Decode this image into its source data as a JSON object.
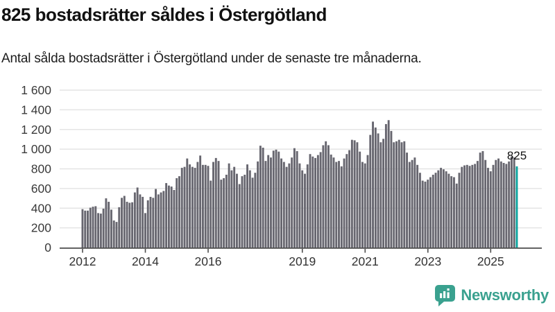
{
  "header": {
    "title": "825 bostadsrätter såldes i Östergötland",
    "subtitle": "Antal sålda bostadsrätter i Östergötland under de senaste tre månaderna."
  },
  "chart_data": {
    "type": "bar",
    "title": "825 bostadsrätter såldes i Östergötland",
    "subtitle": "Antal sålda bostadsrätter i Östergötland under de senaste tre månaderna.",
    "xlabel": "",
    "ylabel": "",
    "ylim": [
      0,
      1600
    ],
    "ytick_step": 200,
    "ytick_labels": [
      "0",
      "200",
      "400",
      "600",
      "800",
      "1 000",
      "1 200",
      "1 400",
      "1 600"
    ],
    "grid": "horizontal",
    "frequency": "monthly",
    "x_start": "2012-01",
    "x_end": "2025-11",
    "xticks": [
      {
        "label": "2012",
        "x_index": 0
      },
      {
        "label": "2014",
        "x_index": 24
      },
      {
        "label": "2016",
        "x_index": 48
      },
      {
        "label": "2019",
        "x_index": 84
      },
      {
        "label": "2021",
        "x_index": 108
      },
      {
        "label": "2023",
        "x_index": 132
      },
      {
        "label": "2025",
        "x_index": 156
      }
    ],
    "series": [
      {
        "name": "Antal sålda bostadsrätter, rullande tre månader",
        "values": [
          390,
          375,
          375,
          405,
          415,
          420,
          350,
          345,
          395,
          500,
          465,
          385,
          275,
          260,
          410,
          505,
          525,
          465,
          455,
          460,
          560,
          610,
          540,
          515,
          350,
          480,
          515,
          505,
          595,
          540,
          560,
          575,
          655,
          630,
          620,
          585,
          705,
          725,
          810,
          820,
          905,
          845,
          820,
          810,
          870,
          935,
          840,
          840,
          830,
          680,
          870,
          910,
          880,
          690,
          705,
          740,
          855,
          785,
          820,
          750,
          645,
          725,
          740,
          845,
          785,
          710,
          760,
          875,
          1035,
          1015,
          880,
          940,
          915,
          985,
          995,
          975,
          905,
          870,
          820,
          855,
          915,
          1010,
          980,
          855,
          785,
          750,
          845,
          950,
          925,
          910,
          940,
          970,
          1040,
          1080,
          1040,
          945,
          915,
          870,
          880,
          825,
          905,
          950,
          990,
          1095,
          1090,
          1070,
          975,
          870,
          855,
          940,
          1145,
          1280,
          1220,
          1160,
          1070,
          1105,
          1255,
          1295,
          1185,
          1070,
          1080,
          1095,
          1070,
          1080,
          965,
          870,
          890,
          915,
          840,
          760,
          680,
          670,
          690,
          715,
          740,
          760,
          785,
          810,
          795,
          775,
          750,
          725,
          715,
          650,
          760,
          820,
          835,
          840,
          830,
          840,
          850,
          880,
          965,
          980,
          890,
          810,
          775,
          840,
          890,
          905,
          875,
          860,
          850,
          875,
          925,
          915,
          825
        ]
      }
    ],
    "highlight_last": {
      "value": 825,
      "label": "825"
    },
    "bar_color": "#67666f",
    "highlight_color": "#0aa39d",
    "legend": "none"
  },
  "footer": {
    "brand": "Newsworthy",
    "logo_icon": "bar-chart-speech-bubble-icon"
  },
  "colors": {
    "bar_gray": "#67666f",
    "accent_teal": "#0aa39d",
    "logo_teal": "#3aa18f",
    "gridline": "#e4e4e4",
    "axis": "#4c4c4c",
    "tick_text": "#3a3a3a",
    "title_text": "#111111"
  }
}
